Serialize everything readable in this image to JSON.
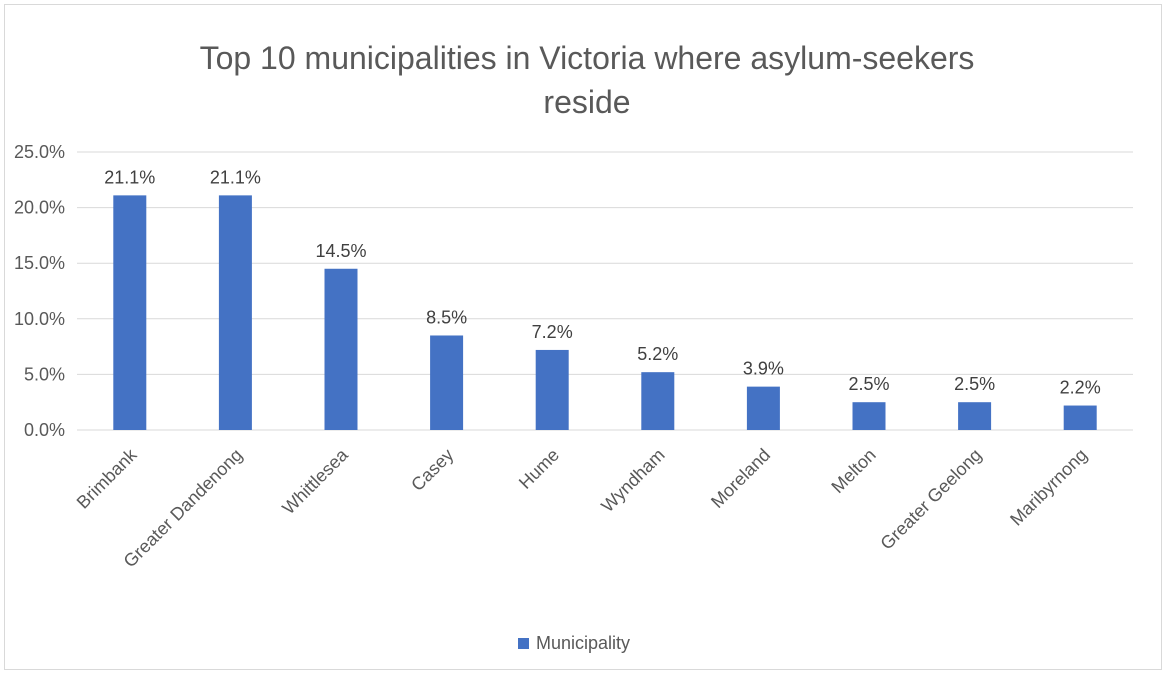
{
  "chart_data": {
    "type": "bar",
    "title_lines": [
      "Top 10 municipalities in Victoria where asylum-seekers",
      "reside"
    ],
    "categories": [
      "Brimbank",
      "Greater Dandenong",
      "Whittlesea",
      "Casey",
      "Hume",
      "Wyndham",
      "Moreland",
      "Melton",
      "Greater Geelong",
      "Maribyrnong"
    ],
    "series": [
      {
        "name": "Municipality",
        "values": [
          21.1,
          21.1,
          14.5,
          8.5,
          7.2,
          5.2,
          3.9,
          2.5,
          2.5,
          2.2
        ],
        "labels": [
          "21.1%",
          "21.1%",
          "14.5%",
          "8.5%",
          "7.2%",
          "5.2%",
          "3.9%",
          "2.5%",
          "2.5%",
          "2.2%"
        ],
        "color": "#4472c4"
      }
    ],
    "y_ticks": [
      "0.0%",
      "5.0%",
      "10.0%",
      "15.0%",
      "20.0%",
      "25.0%"
    ],
    "ylim": [
      0,
      25
    ],
    "grid": true,
    "legend_position": "bottom"
  }
}
